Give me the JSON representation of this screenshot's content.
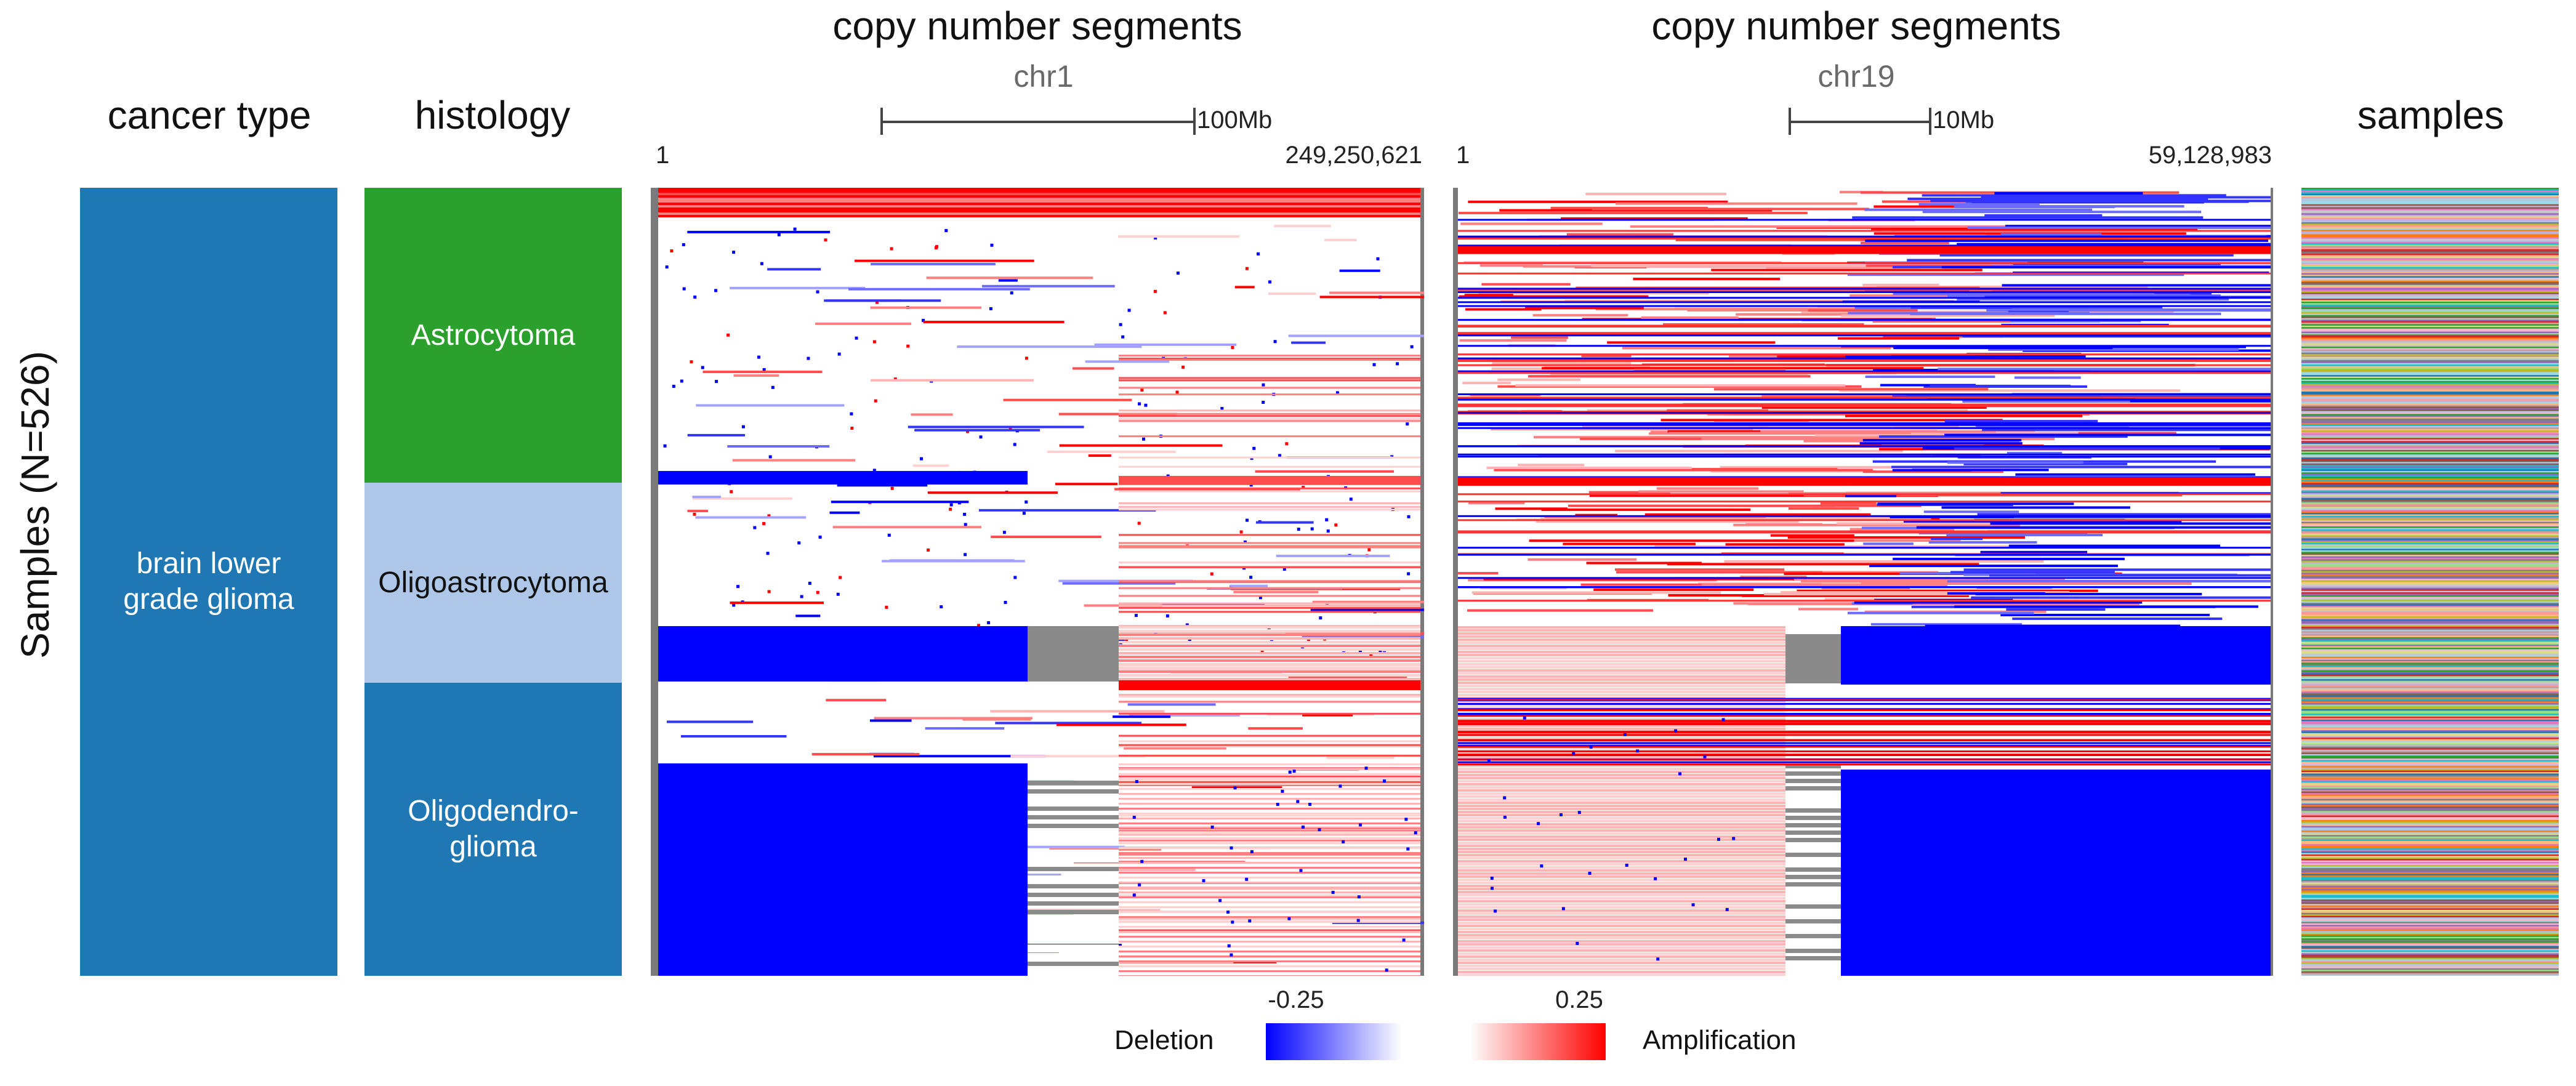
{
  "y_axis_label": "Samples (N=526)",
  "columns": {
    "cancer_type": {
      "header": "cancer type",
      "value": "brain lower grade glioma",
      "color": "#1f77b4"
    },
    "histology": {
      "header": "histology",
      "bands": [
        {
          "label": "Astrocytoma",
          "color": "#2ca02c",
          "fraction": 0.374
        },
        {
          "label": "Oligoastrocytoma",
          "color": "#aec7e8",
          "fraction": 0.254
        },
        {
          "label": "Oligodendro-\nglioma",
          "color": "#1f77b4",
          "fraction": 0.372
        }
      ]
    },
    "samples": {
      "header": "samples"
    }
  },
  "panels": [
    {
      "header": "copy number segments",
      "chromosome": "chr1",
      "scale_label": "100Mb",
      "start_label": "1",
      "end_label": "249,250,621"
    },
    {
      "header": "copy number segments",
      "chromosome": "chr19",
      "scale_label": "10Mb",
      "start_label": "1",
      "end_label": "59,128,983"
    }
  ],
  "legend": {
    "low_label": "Deletion",
    "high_label": "Amplification",
    "low_value": "-0.25",
    "high_value": "0.25",
    "deletion_color": "#0000ff",
    "amplification_color": "#ff0000"
  },
  "chart_data": {
    "type": "heatmap",
    "title": "copy number segments",
    "n_samples": 526,
    "value_range": [
      -0.25,
      0.25
    ],
    "colorscale": [
      "#0000ff",
      "#ffffff",
      "#ff0000"
    ],
    "row_groups": [
      "Astrocytoma",
      "Oligoastrocytoma",
      "Oligodendro-\nglioma"
    ],
    "series": [
      {
        "name": "chr1",
        "x_range": [
          1,
          249250621
        ]
      },
      {
        "name": "chr19",
        "x_range": [
          1,
          59128983
        ]
      }
    ]
  }
}
